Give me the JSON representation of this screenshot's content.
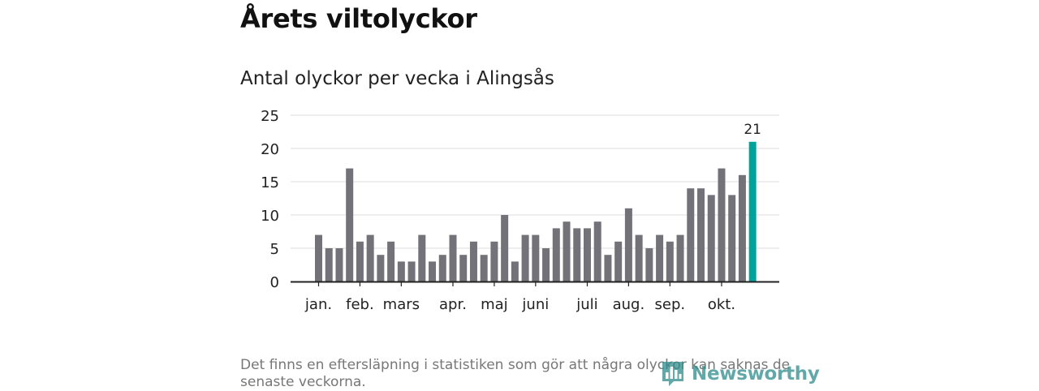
{
  "page": {
    "title": "Årets viltolyckor",
    "subtitle": "Antal olyckor per vecka i Alingsås",
    "footnote": "Det finns en eftersläpning i statistiken som gör att några olyckor kan saknas de senaste veckorna.",
    "brand": "Newsworthy"
  },
  "colors": {
    "bar": "#737278",
    "highlight": "#00a39b",
    "grid": "#dddddd",
    "axis": "#222222",
    "brand": "#2e8b8b"
  },
  "chart_data": {
    "type": "bar",
    "title": "Antal olyckor per vecka i Alingsås",
    "xlabel": "",
    "ylabel": "",
    "ylim": [
      0,
      25
    ],
    "yticks": [
      0,
      5,
      10,
      15,
      20,
      25
    ],
    "grid": true,
    "values": [
      7,
      5,
      5,
      17,
      6,
      7,
      4,
      6,
      3,
      3,
      7,
      3,
      4,
      7,
      4,
      6,
      4,
      6,
      10,
      3,
      7,
      7,
      5,
      8,
      9,
      8,
      8,
      9,
      4,
      6,
      11,
      7,
      5,
      7,
      6,
      7,
      14,
      14,
      13,
      17,
      13,
      16,
      21
    ],
    "month_labels": [
      {
        "label": "jan.",
        "index": 0
      },
      {
        "label": "feb.",
        "index": 4
      },
      {
        "label": "mars",
        "index": 8
      },
      {
        "label": "apr.",
        "index": 13
      },
      {
        "label": "maj",
        "index": 17
      },
      {
        "label": "juni",
        "index": 21
      },
      {
        "label": "juli",
        "index": 26
      },
      {
        "label": "aug.",
        "index": 30
      },
      {
        "label": "sep.",
        "index": 34
      },
      {
        "label": "okt.",
        "index": 39
      }
    ],
    "highlight_index": 42,
    "highlight_label": "21"
  }
}
